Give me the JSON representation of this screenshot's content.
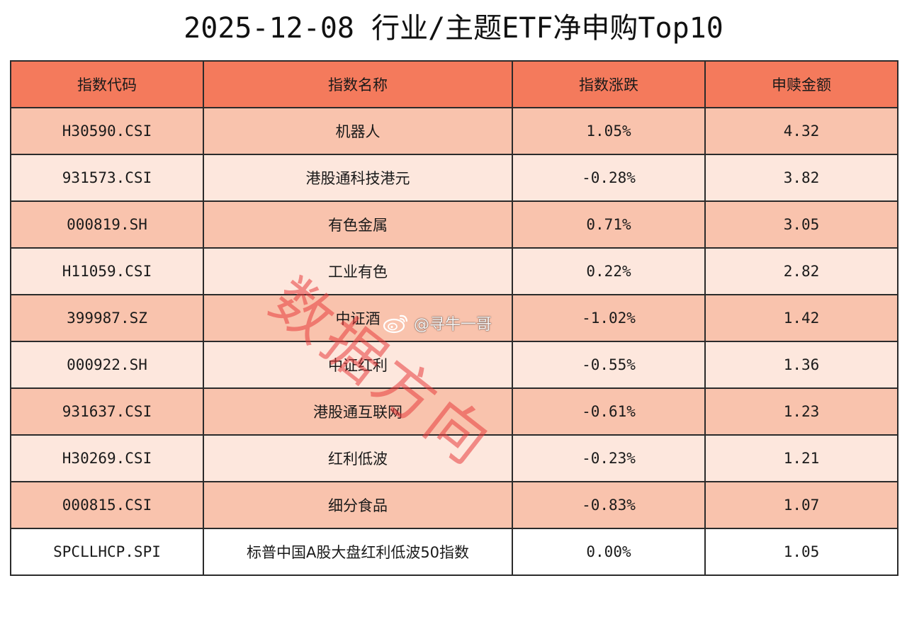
{
  "title": "2025-12-08 行业/主题ETF净申购Top10",
  "table": {
    "headers": [
      "指数代码",
      "指数名称",
      "指数涨跌",
      "申赎金额"
    ],
    "rows": [
      {
        "code": "H30590.CSI",
        "name": "机器人",
        "change": "1.05%",
        "amount": "4.32"
      },
      {
        "code": "931573.CSI",
        "name": "港股通科技港元",
        "change": "-0.28%",
        "amount": "3.82"
      },
      {
        "code": "000819.SH",
        "name": "有色金属",
        "change": "0.71%",
        "amount": "3.05"
      },
      {
        "code": "H11059.CSI",
        "name": "工业有色",
        "change": "0.22%",
        "amount": "2.82"
      },
      {
        "code": "399987.SZ",
        "name": "中证酒",
        "change": "-1.02%",
        "amount": "1.42"
      },
      {
        "code": "000922.SH",
        "name": "中证红利",
        "change": "-0.55%",
        "amount": "1.36"
      },
      {
        "code": "931637.CSI",
        "name": "港股通互联网",
        "change": "-0.61%",
        "amount": "1.23"
      },
      {
        "code": "H30269.CSI",
        "name": "红利低波",
        "change": "-0.23%",
        "amount": "1.21"
      },
      {
        "code": "000815.CSI",
        "name": "细分食品",
        "change": "-0.83%",
        "amount": "1.07"
      },
      {
        "code": "SPCLLHCP.SPI",
        "name": "标普中国A股大盘红利低波50指数",
        "change": "0.00%",
        "amount": "1.05"
      }
    ]
  },
  "watermark": {
    "text": "数据方向",
    "color": "#e83c3c"
  },
  "weibo_tag": {
    "icon": "weibo-icon",
    "text": "@寻牛一哥"
  },
  "colors": {
    "header_bg": "#f47a5c",
    "row_odd_bg": "#f9c3ad",
    "row_even_bg": "#fde7dd"
  }
}
